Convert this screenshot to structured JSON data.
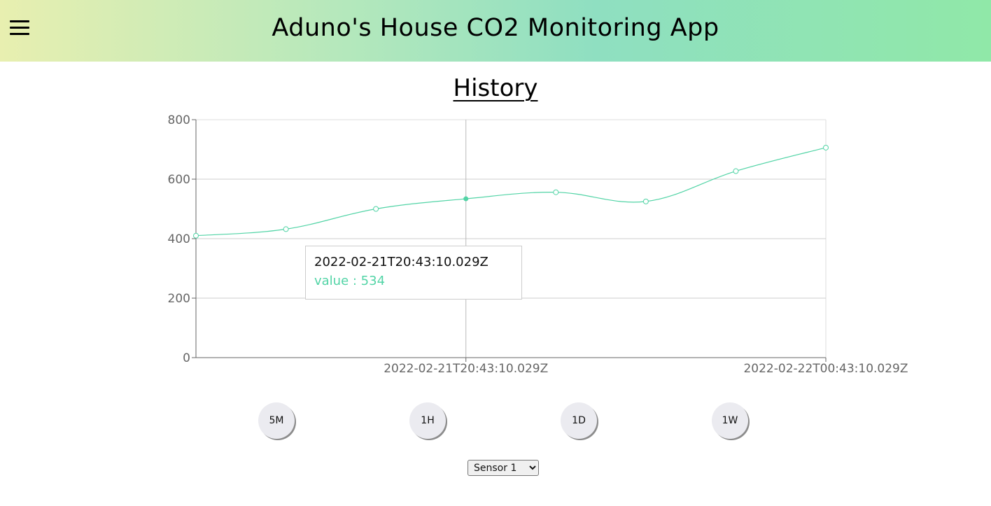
{
  "header": {
    "title": "Aduno's House CO2 Monitoring App",
    "menu_icon": "hamburger-menu-icon"
  },
  "main": {
    "section_title": "History"
  },
  "chart_data": {
    "type": "line",
    "y_ticks": [
      "0",
      "200",
      "400",
      "600",
      "800"
    ],
    "ylim": [
      0,
      800
    ],
    "x_tick_labels": [
      "2022-02-21T20:43:10.029Z",
      "2022-02-22T00:43:10.029Z"
    ],
    "x_tick_indices": [
      3,
      7
    ],
    "grid": true,
    "line_color": "#52d4a6",
    "series": [
      {
        "values": [
          410,
          432,
          500,
          534,
          556,
          525,
          627,
          706
        ]
      }
    ]
  },
  "tooltip": {
    "label": "2022-02-21T20:43:10.029Z",
    "value_text": "value : 534",
    "index": 3
  },
  "range_buttons": [
    {
      "label": "5M"
    },
    {
      "label": "1H"
    },
    {
      "label": "1D"
    },
    {
      "label": "1W"
    }
  ],
  "sensor_select": {
    "selected": "Sensor 1"
  }
}
